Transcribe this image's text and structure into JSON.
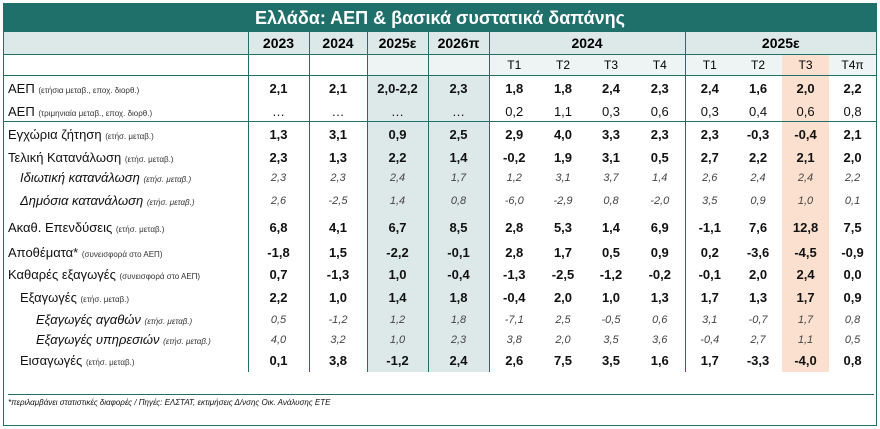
{
  "title": "Ελλάδα: ΑΕΠ & βασικά συστατικά δαπάνης",
  "annual_headers": [
    "2023",
    "2024",
    "2025ε",
    "2026π"
  ],
  "year_group_headers": [
    "2024",
    "2025ε"
  ],
  "quarter_headers": [
    "T1",
    "T2",
    "T3",
    "T4",
    "T1",
    "T2",
    "T3",
    "T4π"
  ],
  "rows": [
    {
      "name": "ΑΕΠ",
      "note": "(ετήσια μεταβ., εποχ. διορθ.)",
      "values": [
        "2,1",
        "2,1",
        "2,0-2,2",
        "2,3",
        "1,8",
        "1,8",
        "2,4",
        "2,3",
        "2,4",
        "1,6",
        "2,0",
        "2,2"
      ]
    },
    {
      "name": "ΑΕΠ",
      "note": "(τριμηνιαία μεταβ., εποχ. διορθ.)",
      "values": [
        "…",
        "…",
        "…",
        "…",
        "0,2",
        "1,1",
        "0,3",
        "0,6",
        "0,3",
        "0,4",
        "0,6",
        "0,8"
      ]
    },
    {
      "name": "Εγχώρια ζήτηση",
      "note": "(ετήσ. μεταβ.)",
      "values": [
        "1,3",
        "3,1",
        "0,9",
        "2,5",
        "2,9",
        "4,0",
        "3,3",
        "2,3",
        "2,3",
        "-0,3",
        "-0,4",
        "2,1"
      ]
    },
    {
      "name": "Τελική Κατανάλωση",
      "note": "(ετήσ. μεταβ.)",
      "values": [
        "2,3",
        "1,3",
        "2,2",
        "1,4",
        "-0,2",
        "1,9",
        "3,1",
        "0,5",
        "2,7",
        "2,2",
        "2,1",
        "2,0"
      ]
    },
    {
      "name": "Ιδιωτική κατανάλωση",
      "note": "(ετήσ. μεταβ.)",
      "values": [
        "2,3",
        "2,3",
        "2,4",
        "1,7",
        "1,2",
        "3,1",
        "3,7",
        "1,4",
        "2,6",
        "2,4",
        "2,4",
        "2,2"
      ]
    },
    {
      "name": "Δημόσια κατανάλωση",
      "note": "(ετήσ. μεταβ.)",
      "values": [
        "2,6",
        "-2,5",
        "1,4",
        "0,8",
        "-6,0",
        "-2,9",
        "0,8",
        "-2,0",
        "3,5",
        "0,9",
        "1,0",
        "0,1"
      ]
    },
    {
      "name": "Ακαθ. Επενδύσεις",
      "note": "(ετήσ. μεταβ.)",
      "values": [
        "6,8",
        "4,1",
        "6,7",
        "8,5",
        "2,8",
        "5,3",
        "1,4",
        "6,9",
        "-1,1",
        "7,6",
        "12,8",
        "7,5"
      ]
    },
    {
      "name": "Αποθέματα*",
      "note": "(συνεισφορά στο ΑΕΠ)",
      "values": [
        "-1,8",
        "1,5",
        "-2,2",
        "-0,1",
        "2,8",
        "1,7",
        "0,5",
        "0,9",
        "0,2",
        "-3,6",
        "-4,5",
        "-0,9"
      ]
    },
    {
      "name": "Καθαρές εξαγωγές",
      "note": "(συνεισφορά στο ΑΕΠ)",
      "values": [
        "0,7",
        "-1,3",
        "1,0",
        "-0,4",
        "-1,3",
        "-2,5",
        "-1,2",
        "-0,2",
        "-0,1",
        "2,0",
        "2,4",
        "0,0"
      ]
    },
    {
      "name": "Εξαγωγές",
      "note": "(ετήσ. μεταβ.)",
      "values": [
        "2,2",
        "1,0",
        "1,4",
        "1,8",
        "-0,4",
        "2,0",
        "1,0",
        "1,3",
        "1,7",
        "1,3",
        "1,7",
        "0,9"
      ]
    },
    {
      "name": "Εξαγωγές αγαθών",
      "note": "(ετήσ. μεταβ.)",
      "values": [
        "0,5",
        "-1,2",
        "1,2",
        "1,8",
        "-7,1",
        "2,5",
        "-0,5",
        "0,6",
        "3,1",
        "-0,7",
        "1,7",
        "0,8"
      ]
    },
    {
      "name": "Εξαγωγές υπηρεσιών",
      "note": "(ετήσ. μεταβ.)",
      "values": [
        "4,0",
        "3,2",
        "1,0",
        "2,3",
        "3,8",
        "2,0",
        "3,5",
        "3,6",
        "-0,4",
        "2,7",
        "1,1",
        "0,5"
      ]
    },
    {
      "name": "Εισαγωγές",
      "note": "(ετήσ. μεταβ.)",
      "values": [
        "0,1",
        "3,8",
        "-1,2",
        "2,4",
        "2,6",
        "7,5",
        "3,5",
        "1,6",
        "1,7",
        "-3,3",
        "-4,0",
        "0,8"
      ]
    }
  ],
  "footnote": "*περιλαμβάνει στατιστικές διαφορές / Πηγές: ΕΛΣΤΑΤ, εκτιμήσεις Δ/νσης Οικ. Ανάλυσης ΕΤΕ",
  "colors": {
    "accent": "#1f6f6b",
    "forecast_bg": "#dde9e8",
    "highlight": "#fbe0cf"
  }
}
